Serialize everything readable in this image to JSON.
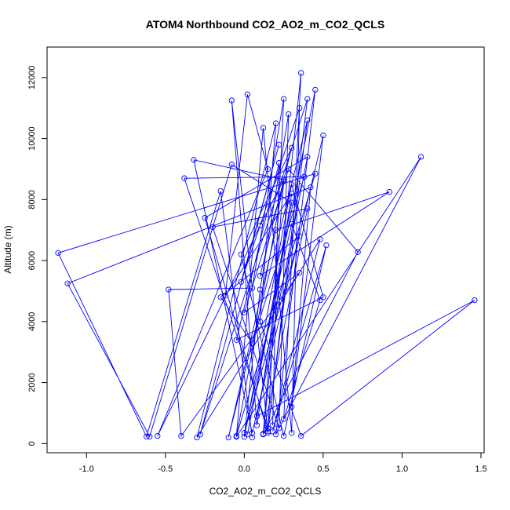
{
  "chart_data": {
    "type": "scatter",
    "title": "ATOM4 Northbound CO2_AO2_m_CO2_QCLS",
    "xlabel": "CO2_AO2_m_CO2_QCLS",
    "ylabel": "Altitude (m)",
    "xlim": [
      -1.25,
      1.52
    ],
    "ylim": [
      -300,
      13000
    ],
    "x_ticks": [
      -1.0,
      -0.5,
      0.0,
      0.5,
      1.0,
      1.5
    ],
    "x_tick_labels": [
      "-1.0",
      "-0.5",
      "0.0",
      "0.5",
      "1.0",
      "1.5"
    ],
    "y_ticks": [
      0,
      2000,
      4000,
      6000,
      8000,
      10000,
      12000
    ],
    "y_tick_labels": [
      "0",
      "2000",
      "4000",
      "6000",
      "8000",
      "10000",
      "12000"
    ],
    "grid": false,
    "legend": "none",
    "markers": "open-circle",
    "connected": true,
    "series": [
      {
        "color": "#0000ff",
        "points": [
          [
            0.05,
            200
          ],
          [
            -0.15,
            8280
          ],
          [
            -0.62,
            230
          ],
          [
            -1.18,
            6250
          ],
          [
            0.45,
            8850
          ],
          [
            -0.05,
            250
          ],
          [
            0.12,
            10350
          ],
          [
            0.3,
            350
          ],
          [
            0.35,
            11000
          ],
          [
            -0.02,
            5300
          ],
          [
            0.22,
            9800
          ],
          [
            -0.28,
            300
          ],
          [
            0.4,
            11300
          ],
          [
            0.15,
            400
          ],
          [
            -0.08,
            11250
          ],
          [
            0.08,
            600
          ],
          [
            0.3,
            8200
          ],
          [
            -0.12,
            4850
          ],
          [
            0.02,
            11450
          ],
          [
            0.15,
            9000
          ],
          [
            -0.55,
            250
          ],
          [
            0.1,
            7150
          ],
          [
            0.25,
            8650
          ],
          [
            -0.32,
            9300
          ],
          [
            0.05,
            350
          ],
          [
            0.5,
            10100
          ],
          [
            0.3,
            1200
          ],
          [
            0.42,
            8400
          ],
          [
            -1.12,
            5250
          ],
          [
            -0.6,
            230
          ],
          [
            -0.08,
            9150
          ],
          [
            0.3,
            7900
          ],
          [
            0.02,
            300
          ],
          [
            0.45,
            11600
          ],
          [
            0.2,
            300
          ],
          [
            1.12,
            9400
          ],
          [
            -0.05,
            220
          ],
          [
            0.25,
            8600
          ],
          [
            0.12,
            320
          ],
          [
            0.36,
            12150
          ],
          [
            0.25,
            800
          ],
          [
            0.48,
            4700
          ],
          [
            0.3,
            7200
          ],
          [
            0.0,
            350
          ],
          [
            0.35,
            6800
          ],
          [
            -0.15,
            4800
          ],
          [
            0.05,
            3300
          ],
          [
            0.38,
            8750
          ],
          [
            -0.38,
            8700
          ],
          [
            0.15,
            500
          ],
          [
            0.4,
            10600
          ],
          [
            -0.1,
            200
          ],
          [
            0.2,
            7000
          ],
          [
            0.92,
            8250
          ],
          [
            0.1,
            5500
          ],
          [
            0.3,
            9700
          ],
          [
            -0.02,
            6200
          ],
          [
            0.25,
            250
          ],
          [
            0.52,
            6500
          ],
          [
            0.18,
            400
          ],
          [
            0.48,
            6700
          ],
          [
            -0.3,
            200
          ],
          [
            0.2,
            10500
          ],
          [
            0.1,
            4000
          ],
          [
            0.36,
            250
          ],
          [
            1.46,
            4700
          ],
          [
            0.08,
            900
          ],
          [
            0.4,
            9400
          ],
          [
            -0.25,
            7400
          ],
          [
            0.15,
            350
          ],
          [
            0.25,
            11300
          ],
          [
            0.05,
            5100
          ],
          [
            -0.48,
            5050
          ],
          [
            -0.4,
            250
          ],
          [
            0.35,
            5600
          ],
          [
            0.0,
            4300
          ],
          [
            0.28,
            9000
          ],
          [
            0.72,
            6280
          ],
          [
            0.12,
            300
          ],
          [
            0.4,
            7700
          ],
          [
            -0.2,
            7100
          ],
          [
            0.22,
            500
          ],
          [
            0.28,
            10800
          ],
          [
            0.1,
            5050
          ],
          [
            0.0,
            220
          ],
          [
            0.3,
            8500
          ],
          [
            0.5,
            4800
          ],
          [
            -0.05,
            3400
          ],
          [
            0.22,
            9200
          ],
          [
            0.18,
            600
          ]
        ]
      }
    ]
  }
}
